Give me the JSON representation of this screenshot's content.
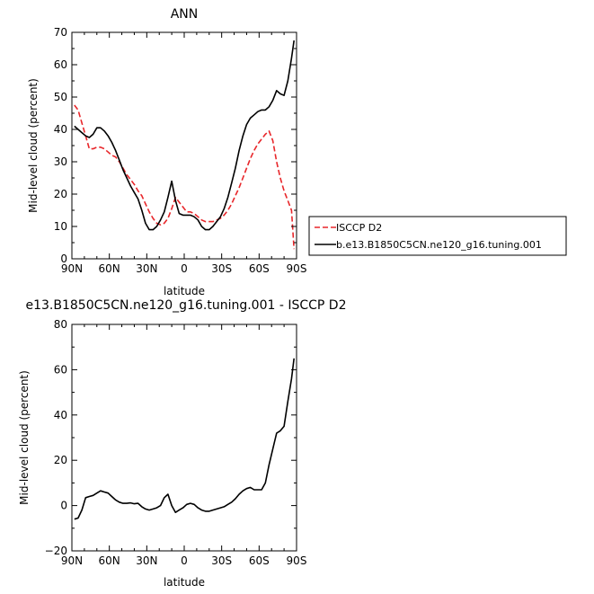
{
  "chart_data": [
    {
      "type": "line",
      "title": "ANN",
      "xlabel": "latitude",
      "ylabel": "Mid-level cloud (percent)",
      "xlim": [
        90,
        -90
      ],
      "ylim": [
        0,
        70
      ],
      "xticks": [
        90,
        60,
        30,
        0,
        -30,
        -60,
        -90
      ],
      "xtick_labels": [
        "90N",
        "60N",
        "30N",
        "0",
        "30S",
        "60S",
        "90S"
      ],
      "yticks": [
        0,
        10,
        20,
        30,
        40,
        50,
        60,
        70
      ],
      "ytick_labels": [
        "0",
        "10",
        "20",
        "30",
        "40",
        "50",
        "60",
        "70"
      ],
      "grid": false,
      "legend_position": "right",
      "series": [
        {
          "name": "ISCCP D2",
          "color": "#e8262a",
          "dash": "dashed",
          "x": [
            88,
            85,
            82,
            79,
            76,
            73,
            70,
            67,
            64,
            61,
            58,
            55,
            52,
            49,
            46,
            43,
            40,
            37,
            34,
            31,
            28,
            25,
            22,
            19,
            16,
            13,
            10,
            7,
            4,
            1,
            -2,
            -5,
            -8,
            -11,
            -14,
            -17,
            -20,
            -23,
            -26,
            -29,
            -32,
            -35,
            -38,
            -41,
            -44,
            -47,
            -50,
            -53,
            -56,
            -59,
            -62,
            -65,
            -68,
            -71,
            -74,
            -77,
            -80,
            -83,
            -86,
            -88
          ],
          "y": [
            47.5,
            46.0,
            42.0,
            38.0,
            34.0,
            34.0,
            34.5,
            34.5,
            34.0,
            33.0,
            32.0,
            31.5,
            30.0,
            28.0,
            26.0,
            24.5,
            23.0,
            21.0,
            19.5,
            17.0,
            14.5,
            12.5,
            11.0,
            10.5,
            11.0,
            12.5,
            15.5,
            19.0,
            17.5,
            16.0,
            14.5,
            14.5,
            14.0,
            13.0,
            12.0,
            11.5,
            11.5,
            11.5,
            12.0,
            12.5,
            13.5,
            15.0,
            17.0,
            19.5,
            22.0,
            25.0,
            28.0,
            31.0,
            33.5,
            35.5,
            37.0,
            38.5,
            39.5,
            36.5,
            30.0,
            25.0,
            21.0,
            18.0,
            15.0,
            3.0
          ]
        },
        {
          "name": "b.e13.B1850C5CN.ne120_g16.tuning.001",
          "color": "#000000",
          "dash": "solid",
          "x": [
            88,
            85,
            82,
            79,
            76,
            73,
            70,
            67,
            64,
            61,
            58,
            55,
            52,
            49,
            46,
            43,
            40,
            37,
            34,
            31,
            28,
            25,
            22,
            19,
            16,
            13,
            10,
            7,
            4,
            1,
            -2,
            -5,
            -8,
            -11,
            -14,
            -17,
            -20,
            -23,
            -26,
            -29,
            -32,
            -35,
            -38,
            -41,
            -44,
            -47,
            -50,
            -53,
            -56,
            -59,
            -62,
            -65,
            -68,
            -71,
            -74,
            -77,
            -80,
            -83,
            -86,
            -88
          ],
          "y": [
            41.0,
            40.0,
            39.0,
            38.0,
            37.5,
            38.5,
            40.5,
            40.5,
            39.5,
            38.0,
            36.0,
            33.5,
            30.5,
            27.5,
            25.0,
            22.5,
            20.5,
            18.5,
            15.0,
            11.0,
            9.0,
            9.0,
            10.0,
            12.0,
            14.5,
            19.0,
            24.0,
            18.0,
            14.0,
            13.5,
            13.5,
            13.5,
            13.0,
            12.0,
            10.0,
            9.0,
            9.0,
            10.0,
            11.5,
            13.0,
            15.5,
            19.0,
            23.5,
            28.0,
            33.5,
            38.0,
            41.5,
            43.5,
            44.5,
            45.5,
            46.0,
            46.0,
            47.0,
            49.0,
            52.0,
            51.0,
            50.5,
            55.0,
            62.0,
            67.5
          ]
        }
      ]
    },
    {
      "type": "line",
      "title": "e13.B1850C5CN.ne120_g16.tuning.001 - ISCCP D2",
      "xlabel": "latitude",
      "ylabel": "Mid-level cloud (percent)",
      "xlim": [
        90,
        -90
      ],
      "ylim": [
        -20,
        80
      ],
      "xticks": [
        90,
        60,
        30,
        0,
        -30,
        -60,
        -90
      ],
      "xtick_labels": [
        "90N",
        "60N",
        "30N",
        "0",
        "30S",
        "60S",
        "90S"
      ],
      "yticks": [
        -20,
        0,
        20,
        40,
        60,
        80
      ],
      "ytick_labels": [
        "−20",
        "0",
        "20",
        "40",
        "60",
        "80"
      ],
      "grid": false,
      "series": [
        {
          "color": "#000000",
          "dash": "solid",
          "x": [
            88,
            85,
            82,
            79,
            76,
            73,
            70,
            67,
            64,
            61,
            58,
            55,
            52,
            49,
            46,
            43,
            40,
            37,
            34,
            31,
            28,
            25,
            22,
            19,
            16,
            13,
            10,
            7,
            4,
            1,
            -2,
            -5,
            -8,
            -11,
            -14,
            -17,
            -20,
            -23,
            -26,
            -29,
            -32,
            -35,
            -38,
            -41,
            -44,
            -47,
            -50,
            -53,
            -56,
            -59,
            -62,
            -65,
            -68,
            -71,
            -74,
            -77,
            -80,
            -83,
            -86,
            -88
          ],
          "y": [
            -6.0,
            -5.5,
            -2.0,
            3.5,
            4.0,
            4.5,
            5.5,
            6.5,
            6.0,
            5.5,
            4.0,
            2.5,
            1.5,
            1.0,
            1.0,
            1.2,
            0.8,
            1.0,
            -0.5,
            -1.5,
            -2.0,
            -1.5,
            -1.0,
            0.0,
            3.5,
            5.0,
            0.0,
            -3.0,
            -2.0,
            -1.0,
            0.5,
            1.0,
            0.5,
            -1.0,
            -2.0,
            -2.5,
            -2.5,
            -2.0,
            -1.5,
            -1.0,
            -0.5,
            0.5,
            1.5,
            3.0,
            5.0,
            6.5,
            7.5,
            8.0,
            7.0,
            7.0,
            7.0,
            10.0,
            18.0,
            25.0,
            32.0,
            33.0,
            35.0,
            46.0,
            56.0,
            65.0
          ]
        }
      ]
    }
  ]
}
